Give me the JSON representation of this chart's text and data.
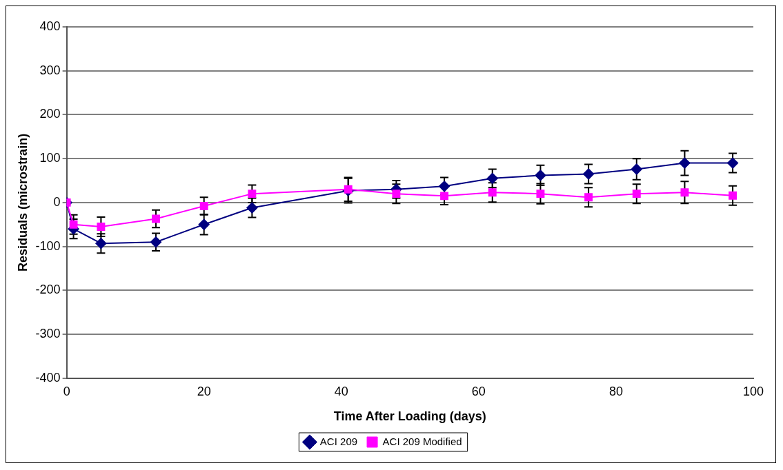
{
  "chart_data": {
    "type": "line",
    "xlabel": "Time After Loading (days)",
    "ylabel": "Residuals (microstrain)",
    "xlim": [
      0,
      100
    ],
    "xticks": [
      0,
      20,
      40,
      60,
      80,
      100
    ],
    "ylim": [
      -400,
      400
    ],
    "yticks": [
      -400,
      -300,
      -200,
      -100,
      0,
      100,
      200,
      300,
      400
    ],
    "grid": "y",
    "legend": "bottom",
    "series": [
      {
        "name": "ACI 209",
        "color": "#000080",
        "marker": "diamond",
        "x": [
          0,
          1,
          5,
          13,
          20,
          27,
          41,
          48,
          55,
          62,
          69,
          76,
          83,
          90,
          97
        ],
        "values": [
          0,
          -60,
          -93,
          -90,
          -50,
          -12,
          27,
          30,
          37,
          55,
          62,
          65,
          76,
          90,
          90
        ],
        "errors": [
          null,
          22,
          22,
          20,
          23,
          22,
          28,
          20,
          20,
          21,
          23,
          22,
          24,
          28,
          22
        ]
      },
      {
        "name": "ACI 209 Modified",
        "color": "#ff00ff",
        "marker": "square",
        "x": [
          0,
          1,
          5,
          13,
          20,
          27,
          41,
          48,
          55,
          62,
          69,
          76,
          83,
          90,
          97
        ],
        "values": [
          0,
          -50,
          -55,
          -37,
          -8,
          20,
          30,
          20,
          15,
          23,
          20,
          12,
          20,
          23,
          16
        ],
        "errors": [
          null,
          22,
          22,
          20,
          20,
          20,
          27,
          22,
          20,
          22,
          23,
          22,
          22,
          25,
          22
        ]
      }
    ]
  }
}
